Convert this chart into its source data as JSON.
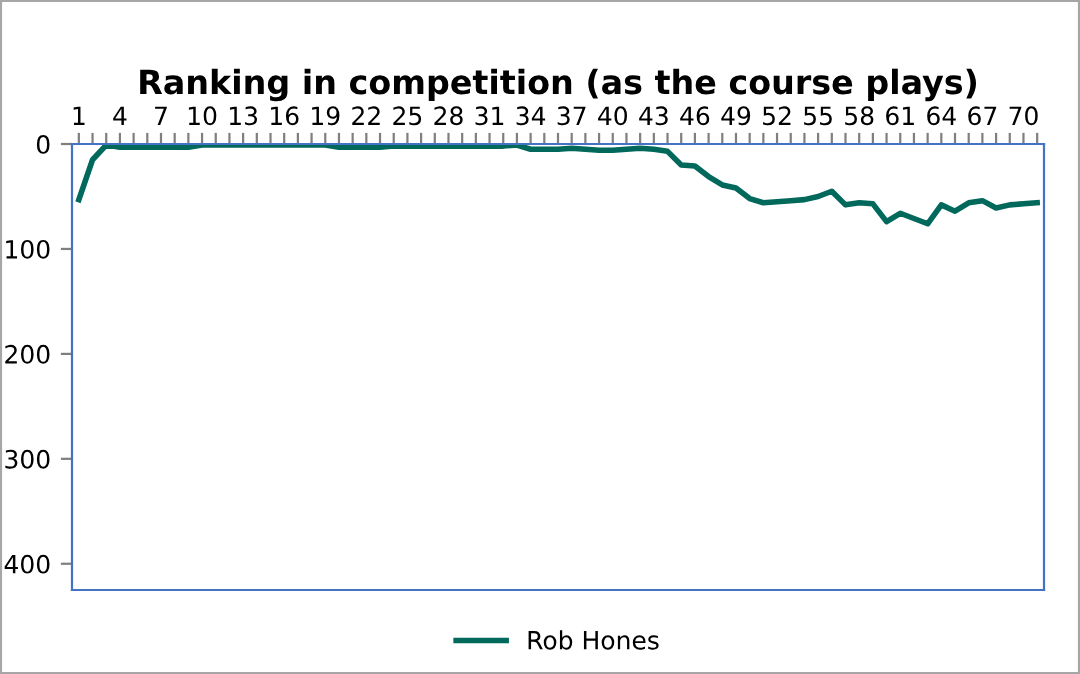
{
  "chart_data": {
    "type": "line",
    "title": "Ranking in competition (as the course plays)",
    "categories": [
      "1",
      null,
      null,
      "4",
      null,
      null,
      "7",
      null,
      null,
      "10",
      null,
      null,
      "13",
      null,
      null,
      "16",
      null,
      null,
      "19",
      null,
      null,
      "22",
      null,
      null,
      "25",
      null,
      null,
      "28",
      null,
      null,
      "31",
      null,
      null,
      "34",
      null,
      null,
      "37",
      null,
      null,
      "40",
      null,
      null,
      "43",
      null,
      null,
      "46",
      null,
      null,
      "49",
      null,
      null,
      "52",
      null,
      null,
      "55",
      null,
      null,
      "58",
      null,
      null,
      "61",
      null,
      null,
      "64",
      null,
      null,
      "67",
      null,
      null,
      "70",
      null
    ],
    "series": [
      {
        "name": "Rob Hones",
        "color": "#00695c",
        "values": [
          53,
          15,
          1,
          3,
          3,
          3,
          3,
          3,
          3,
          1,
          1,
          1,
          1,
          1,
          1,
          1,
          1,
          1,
          1,
          3,
          3,
          3,
          3,
          2,
          2,
          2,
          2,
          2,
          2,
          2,
          2,
          2,
          1,
          5,
          5,
          5,
          4,
          5,
          6,
          6,
          5,
          4,
          5,
          7,
          20,
          21,
          31,
          39,
          42,
          52,
          56,
          55,
          54,
          53,
          50,
          45,
          58,
          56,
          57,
          74,
          66,
          71,
          76,
          58,
          64,
          56,
          54,
          61,
          58,
          57,
          56
        ]
      }
    ],
    "ylim": [
      425,
      0
    ],
    "yticks": [
      0,
      100,
      200,
      300,
      400
    ],
    "grid": false,
    "legend": "bottom",
    "marker": "none",
    "line_style": "solid"
  }
}
